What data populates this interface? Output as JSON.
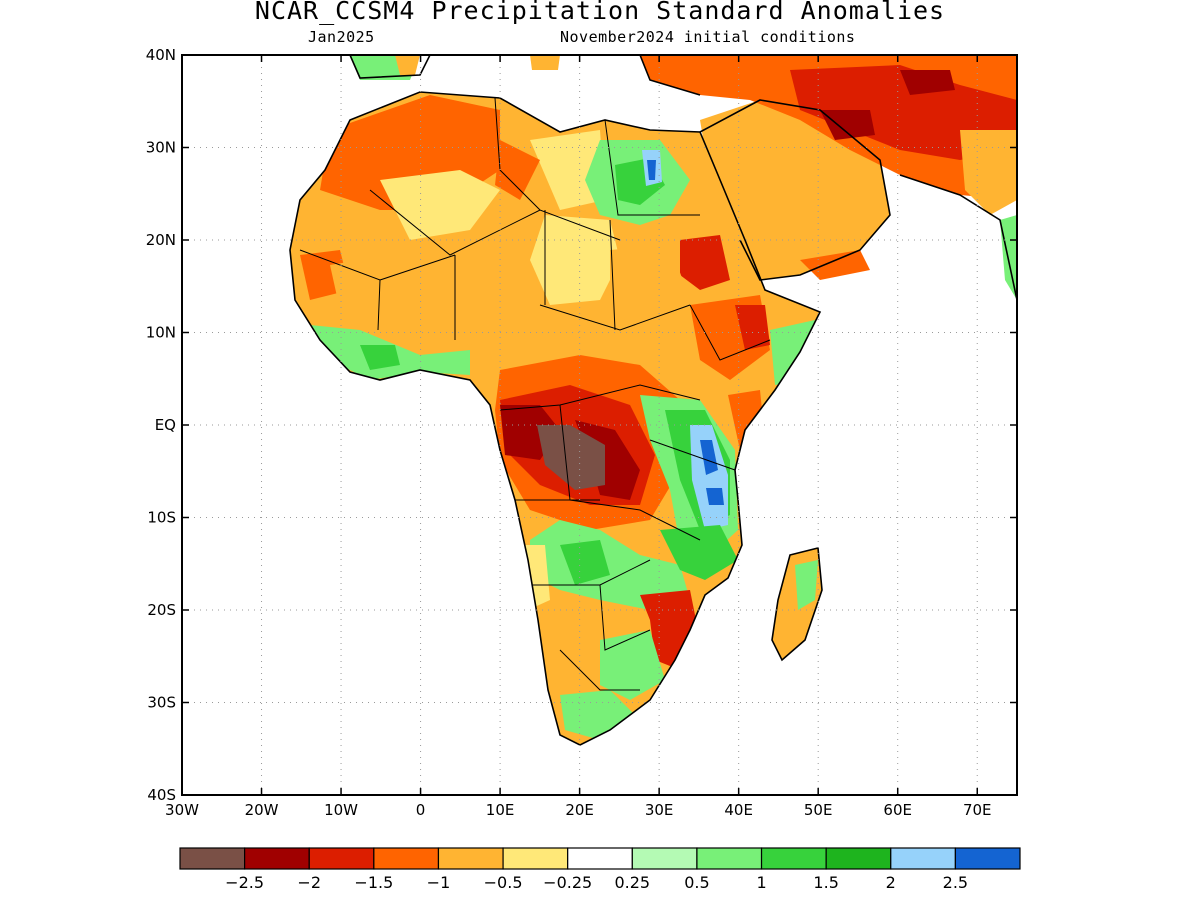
{
  "title": "NCAR_CCSM4 Precipitation Standard Anomalies",
  "subtitle_left": "Jan2025",
  "subtitle_right": "November2024 initial conditions",
  "lat_ticks": [
    "40N",
    "30N",
    "20N",
    "10N",
    "EQ",
    "10S",
    "20S",
    "30S",
    "40S"
  ],
  "lon_ticks": [
    "30W",
    "20W",
    "10W",
    "0",
    "10E",
    "20E",
    "30E",
    "40E",
    "50E",
    "60E",
    "70E"
  ],
  "colorbar": {
    "colors": [
      "#7a5046",
      "#a00000",
      "#dc1e00",
      "#ff6400",
      "#ffb432",
      "#ffe878",
      "#ffffff",
      "#b4fab4",
      "#78f078",
      "#37d23c",
      "#1eb41e",
      "#96d2fa",
      "#1464d2"
    ],
    "labels": [
      "−2.5",
      "−2",
      "−1.5",
      "−1",
      "−0.5",
      "−0.25",
      "0.25",
      "0.5",
      "1",
      "1.5",
      "2",
      "2.5"
    ]
  }
}
